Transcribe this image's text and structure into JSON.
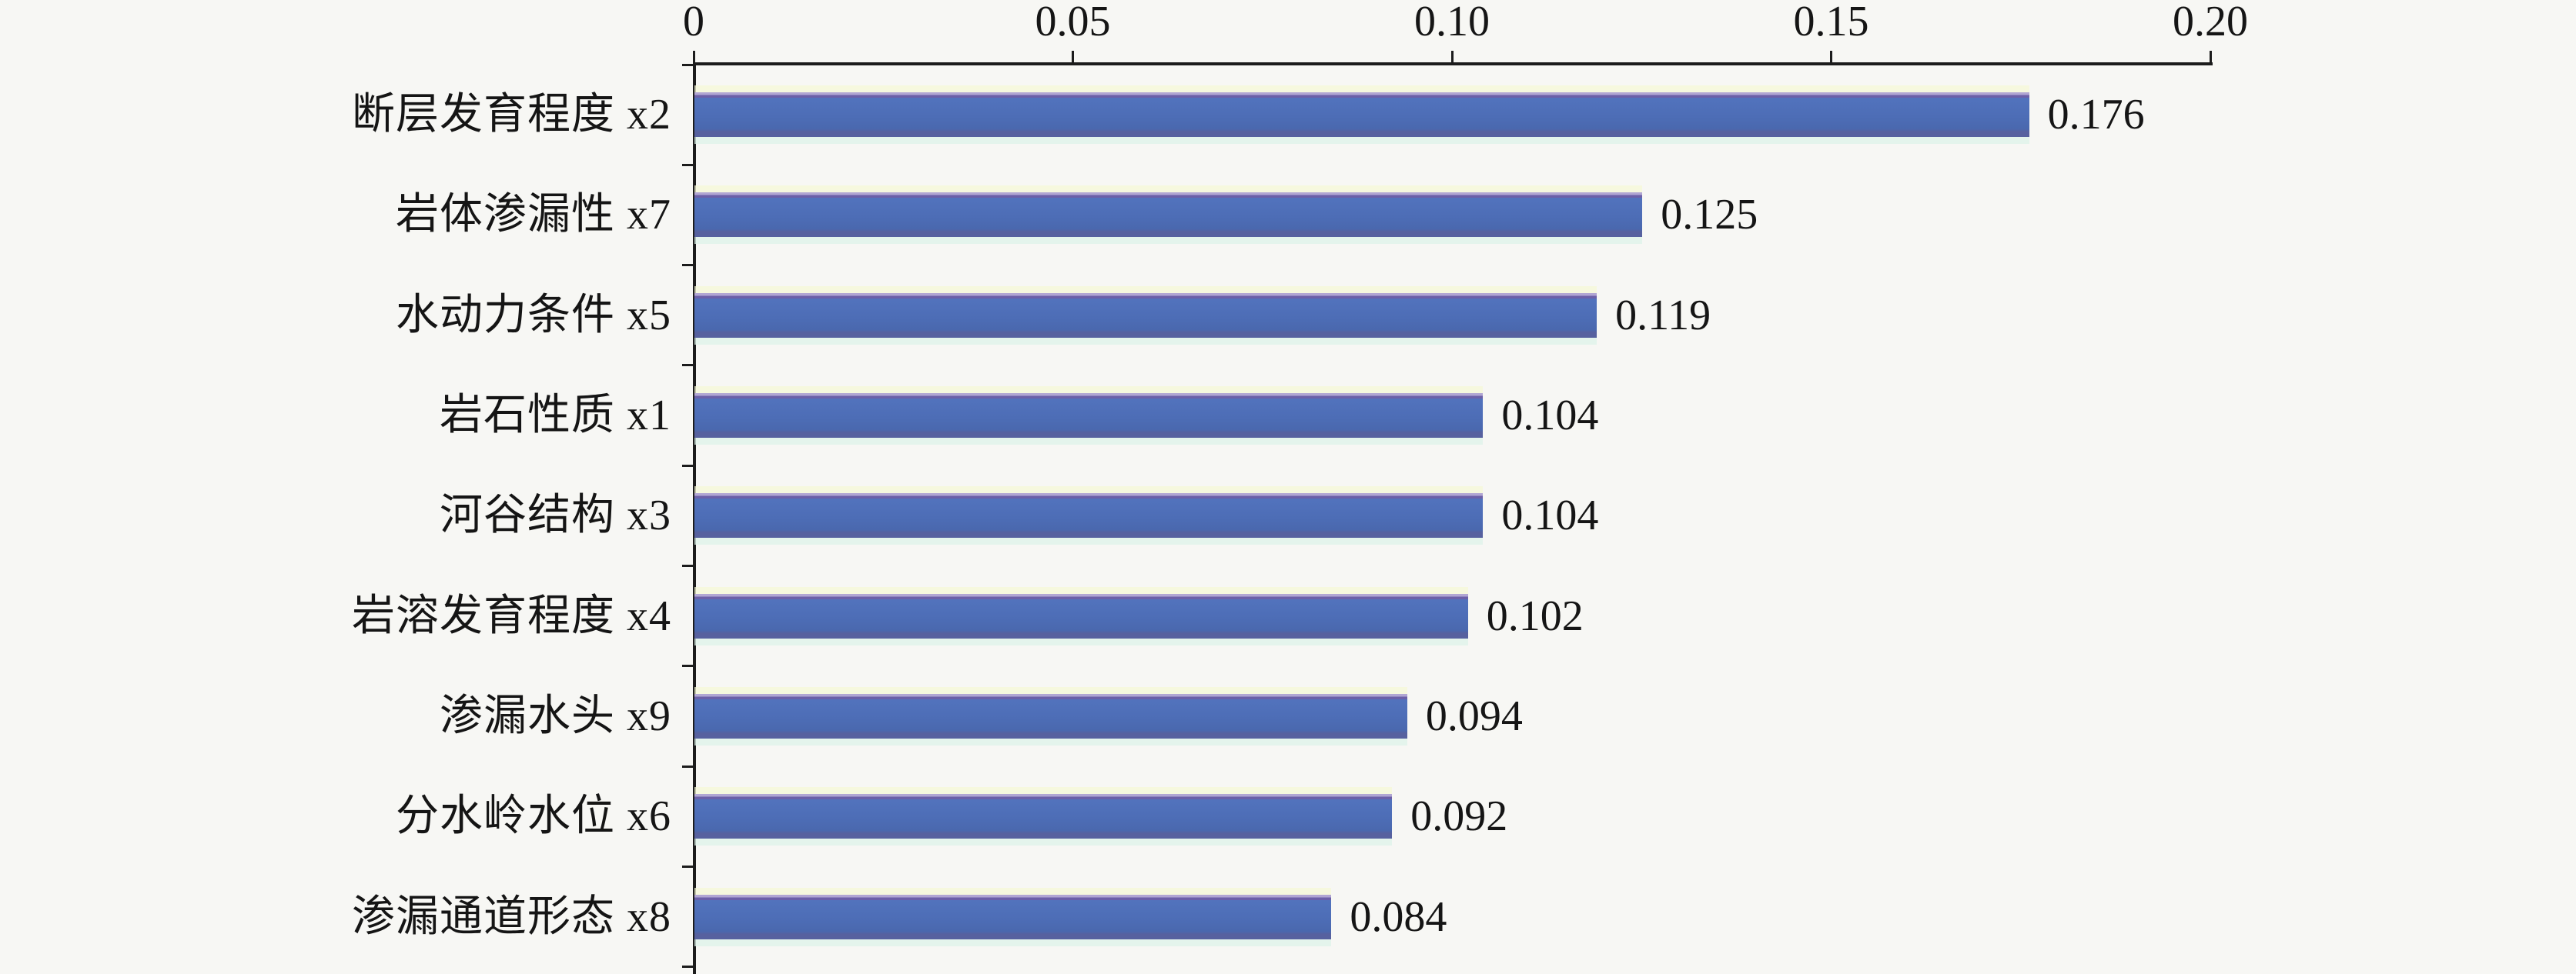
{
  "chart_data": {
    "type": "bar",
    "orientation": "horizontal",
    "title": "",
    "categories": [
      "断层发育程度 x2",
      "岩体渗漏性 x7",
      "水动力条件 x5",
      "岩石性质 x1",
      "河谷结构 x3",
      "岩溶发育程度 x4",
      "渗漏水头 x9",
      "分水岭水位 x6",
      "渗漏通道形态 x8"
    ],
    "values": [
      0.176,
      0.125,
      0.119,
      0.104,
      0.104,
      0.102,
      0.094,
      0.092,
      0.084
    ],
    "value_labels": [
      "0.176",
      "0.125",
      "0.119",
      "0.104",
      "0.104",
      "0.102",
      "0.094",
      "0.092",
      "0.084"
    ],
    "xlabel": "",
    "ylabel": "",
    "xlim": [
      0,
      0.2
    ],
    "x_ticks": [
      0,
      0.05,
      0.1,
      0.15,
      0.2
    ],
    "x_tick_labels": [
      "0",
      "0.05",
      "0.10",
      "0.15",
      "0.20"
    ],
    "x_axis_position": "top",
    "grid": false,
    "legend": null,
    "bar_color": "#4d6db6",
    "bar_edge_top_color": "#6c60a8",
    "bar_edge_bottom_color": "#57619f",
    "axis_color": "#1c1c1c",
    "text_color": "#151515",
    "background_color": "#f7f7f4"
  }
}
